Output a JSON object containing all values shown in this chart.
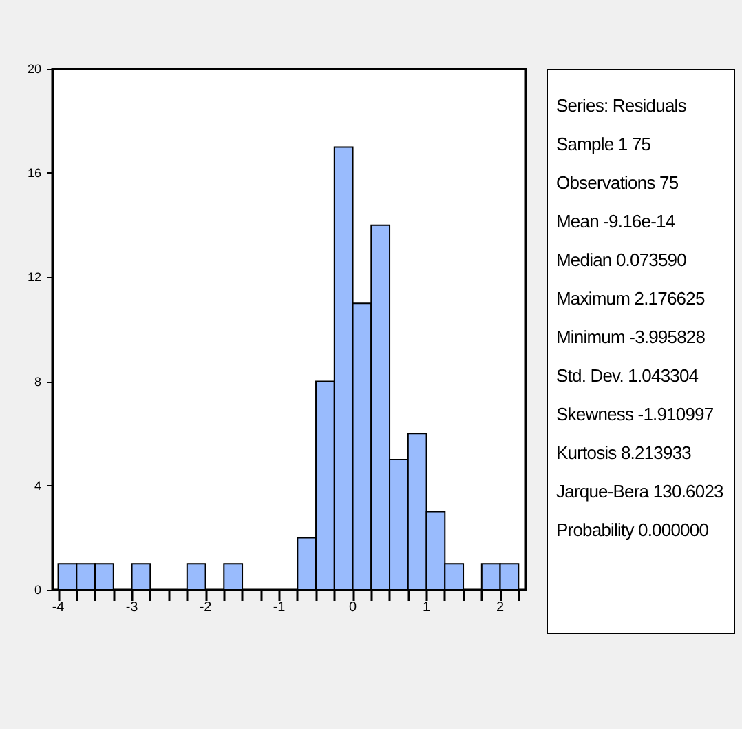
{
  "chart_data": [
    {
      "type": "histogram",
      "bins": [
        -4,
        -3.75,
        -3.5,
        -3.25,
        -3,
        -2.75,
        -2.5,
        -2.25,
        -2,
        -1.75,
        -1.5,
        -1.25,
        -1,
        -0.75,
        -0.5,
        -0.25,
        0,
        0.25,
        0.5,
        0.75,
        1,
        1.25,
        1.5,
        1.75,
        2,
        2.25
      ],
      "values": [
        1,
        1,
        1,
        0,
        1,
        0,
        0,
        1,
        0,
        1,
        0,
        0,
        0,
        2,
        8,
        17,
        11,
        14,
        5,
        6,
        3,
        1,
        0,
        1,
        1
      ],
      "color": "#99bbfd",
      "xlim": [
        -4.08,
        2.35
      ],
      "xticks": [
        -4,
        {
          "value": -3.75,
          "label": null
        },
        {
          "value": -3.5,
          "label": null
        },
        {
          "value": -3.25,
          "label": null
        },
        -3,
        {
          "value": -2.75,
          "label": null
        },
        {
          "value": -2.5,
          "label": null
        },
        {
          "value": -2.25,
          "label": null
        },
        -2,
        {
          "value": -1.75,
          "label": null
        },
        {
          "value": -1.5,
          "label": null
        },
        {
          "value": -1.25,
          "label": null
        },
        -1,
        {
          "value": -0.75,
          "label": null
        },
        {
          "value": -0.5,
          "label": null
        },
        {
          "value": -0.25,
          "label": null
        },
        0,
        {
          "value": 0.25,
          "label": null
        },
        {
          "value": 0.5,
          "label": null
        },
        {
          "value": 0.75,
          "label": null
        },
        1,
        {
          "value": 1.25,
          "label": null
        },
        {
          "value": 1.5,
          "label": null
        },
        {
          "value": 1.75,
          "label": null
        },
        2,
        {
          "value": 2.25,
          "label": null
        }
      ],
      "ylim": [
        0,
        20
      ],
      "yticks": [
        0,
        4,
        8,
        12,
        16,
        20
      ],
      "grid": false
    },
    {
      "type": "other",
      "title": "Series: Residuals",
      "annotations": [
        "Sample 1 75",
        "Observations 75",
        "Mean -9.16e-14",
        "Median 0.073590",
        "Maximum 2.176625",
        "Minimum -3.995828",
        "Std. Dev. 1.043304",
        "Skewness -1.910997",
        "Kurtosis 8.213933",
        "Jarque-Bera 130.6023",
        "Probability 0.000000"
      ]
    }
  ]
}
